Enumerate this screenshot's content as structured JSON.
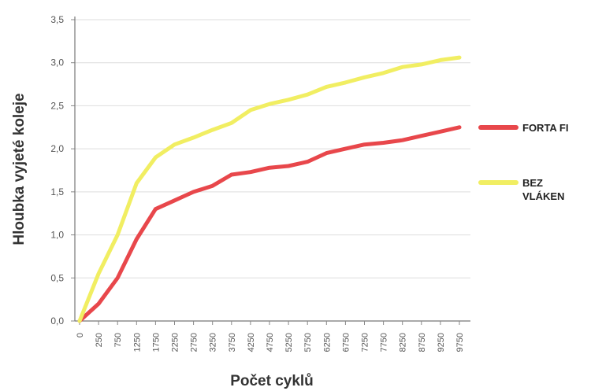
{
  "chart_data": {
    "type": "line",
    "title": "",
    "xlabel": "Počet cyklů",
    "ylabel": "Hloubka vyjeté koleje",
    "ylim": [
      0,
      3.5
    ],
    "yticks": [
      "0,0",
      "0,5",
      "1,0",
      "1,5",
      "2,0",
      "2,5",
      "3,0",
      "3,5"
    ],
    "x": [
      "0",
      "250",
      "750",
      "1250",
      "1750",
      "2250",
      "2750",
      "3250",
      "3750",
      "4250",
      "4750",
      "5250",
      "5750",
      "6250",
      "6750",
      "7250",
      "7750",
      "8250",
      "8750",
      "9250",
      "9750"
    ],
    "grid": true,
    "legend_position": "right",
    "series": [
      {
        "name": "FORTA FI",
        "color": "#e8474b",
        "values": [
          0.0,
          0.2,
          0.5,
          0.95,
          1.3,
          1.4,
          1.5,
          1.57,
          1.7,
          1.73,
          1.78,
          1.8,
          1.85,
          1.95,
          2.0,
          2.05,
          2.07,
          2.1,
          2.15,
          2.2,
          2.25
        ]
      },
      {
        "name": "BEZ VLÁKEN",
        "color": "#f1ee62",
        "values": [
          0.0,
          0.55,
          1.0,
          1.6,
          1.9,
          2.05,
          2.13,
          2.22,
          2.3,
          2.45,
          2.52,
          2.57,
          2.63,
          2.72,
          2.77,
          2.83,
          2.88,
          2.95,
          2.98,
          3.03,
          3.06
        ]
      }
    ]
  }
}
